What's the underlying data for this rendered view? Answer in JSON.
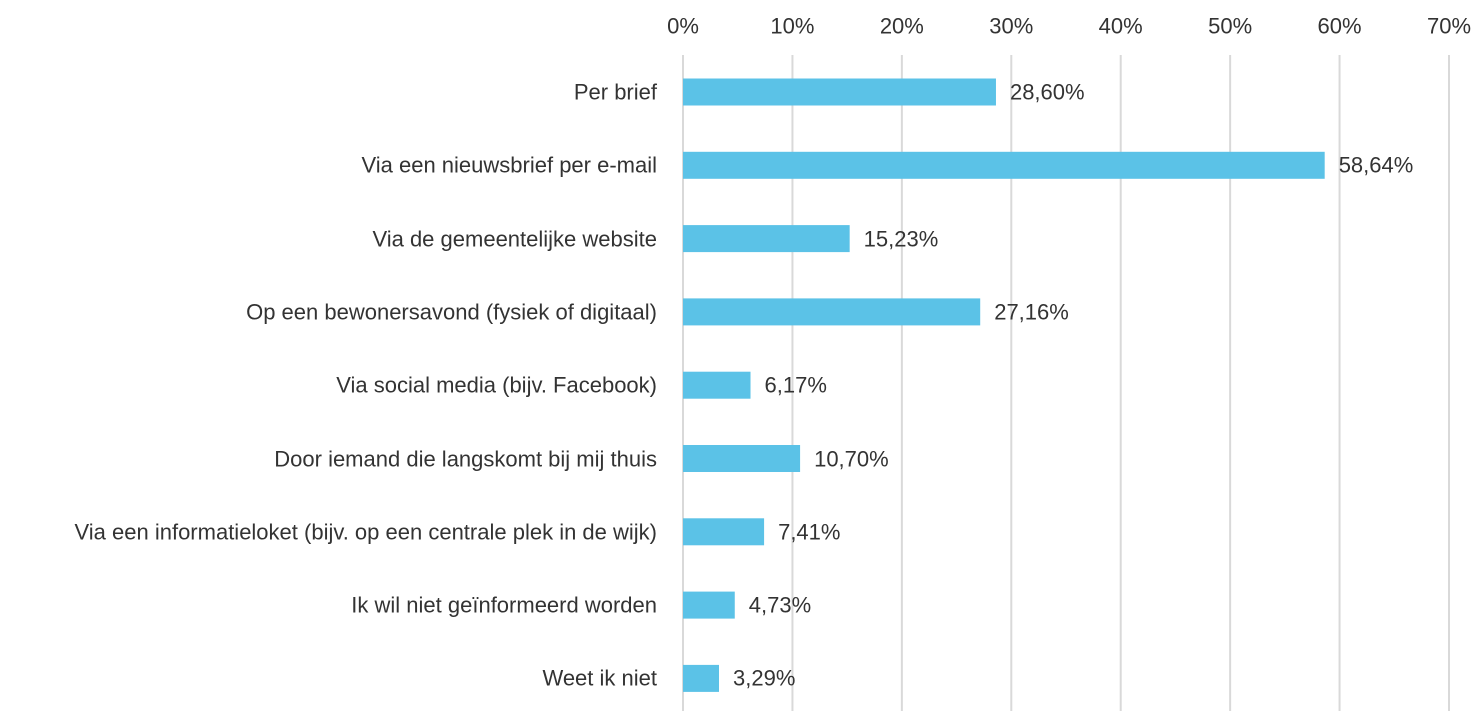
{
  "chart_data": {
    "type": "hbar",
    "categories": [
      "Per brief",
      "Via een nieuwsbrief per e-mail",
      "Via de gemeentelijke website",
      "Op een bewonersavond (fysiek of digitaal)",
      "Via social media (bijv. Facebook)",
      "Door iemand die langskomt bij mij thuis",
      "Via een informatieloket (bijv. op een centrale plek in de wijk)",
      "Ik wil niet geïnformeerd worden",
      "Weet ik niet"
    ],
    "values": [
      28.6,
      58.64,
      15.23,
      27.16,
      6.17,
      10.7,
      7.41,
      4.73,
      3.29
    ],
    "value_labels": [
      "28,60%",
      "58,64%",
      "15,23%",
      "27,16%",
      "6,17%",
      "10,70%",
      "7,41%",
      "4,73%",
      "3,29%"
    ],
    "color": "#5bc2e7",
    "xlim": [
      0,
      70
    ],
    "xticks": [
      {
        "value": 0,
        "label": "0%"
      },
      {
        "value": 10,
        "label": "10%"
      },
      {
        "value": 20,
        "label": "20%"
      },
      {
        "value": 30,
        "label": "30%"
      },
      {
        "value": 40,
        "label": "40%"
      },
      {
        "value": 50,
        "label": "50%"
      },
      {
        "value": 60,
        "label": "60%"
      },
      {
        "value": 70,
        "label": "70%"
      }
    ],
    "grid": true
  }
}
